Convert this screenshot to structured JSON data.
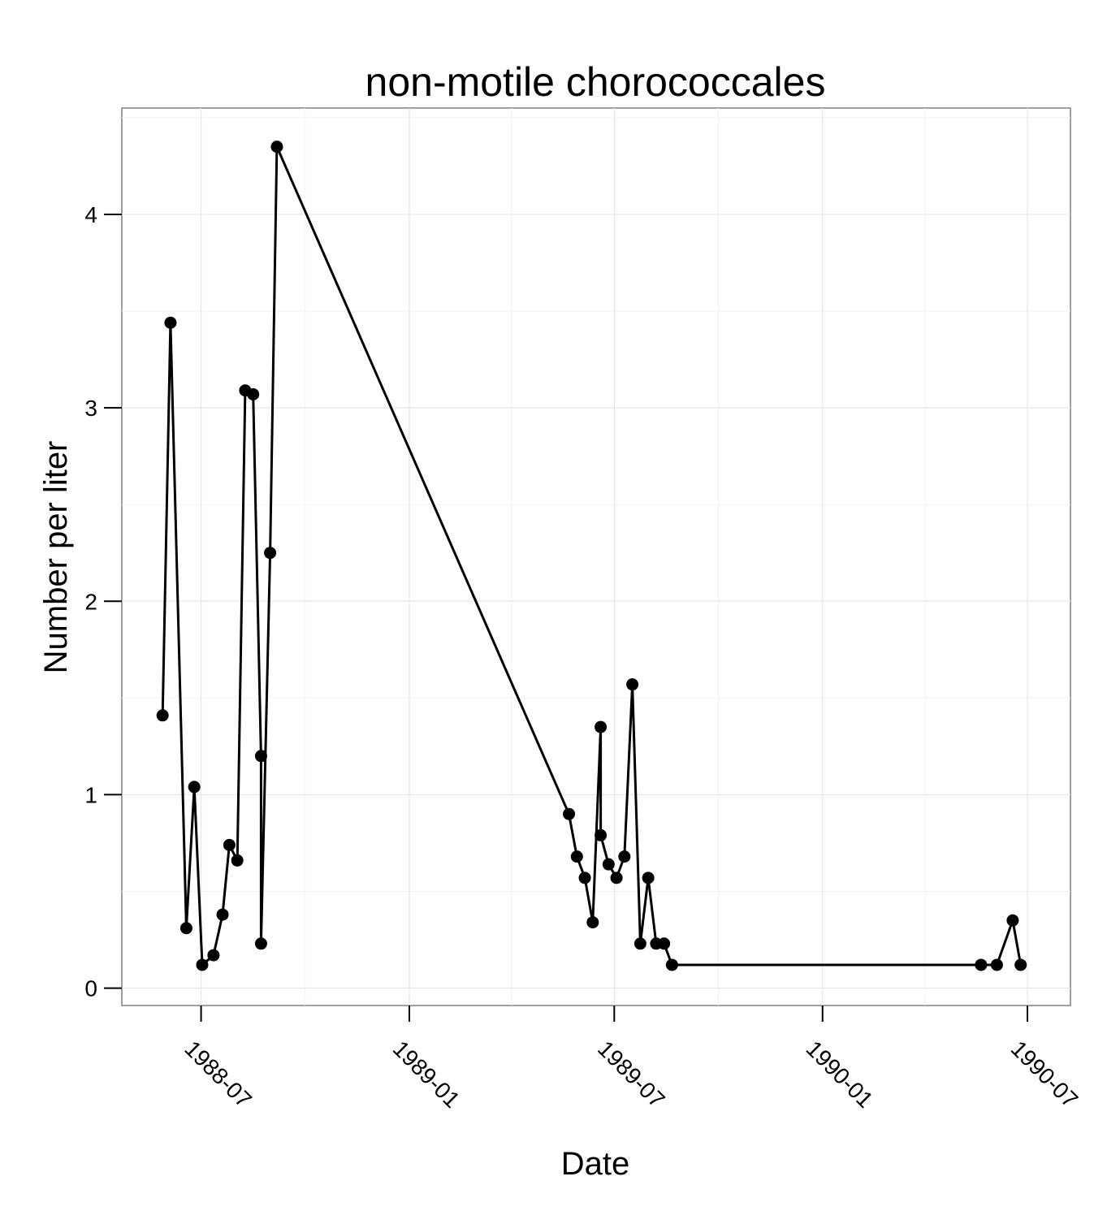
{
  "chart_data": {
    "type": "line",
    "title": "non-motile chorococcales",
    "xlabel": "Date",
    "ylabel": "Number per liter",
    "x_ticks": [
      "1988-07",
      "1989-01",
      "1989-07",
      "1990-01",
      "1990-07"
    ],
    "y_ticks": [
      0,
      1,
      2,
      3,
      4
    ],
    "xlim": [
      "1988-04-22",
      "1990-08-08"
    ],
    "ylim": [
      -0.09,
      4.55
    ],
    "grid": true,
    "markers": true,
    "series": [
      {
        "points": [
          {
            "x": "1988-05-28",
            "y": 1.41
          },
          {
            "x": "1988-06-04",
            "y": 3.44
          },
          {
            "x": "1988-06-18",
            "y": 0.31
          },
          {
            "x": "1988-06-25",
            "y": 1.04
          },
          {
            "x": "1988-07-02",
            "y": 0.12
          },
          {
            "x": "1988-07-12",
            "y": 0.17
          },
          {
            "x": "1988-07-20",
            "y": 0.38
          },
          {
            "x": "1988-07-26",
            "y": 0.74
          },
          {
            "x": "1988-08-02",
            "y": 0.66
          },
          {
            "x": "1988-08-09",
            "y": 3.09
          },
          {
            "x": "1988-08-16",
            "y": 3.07
          },
          {
            "x": "1988-08-23",
            "y": 1.2
          },
          {
            "x": "1988-08-23",
            "y": 0.23
          },
          {
            "x": "1988-08-31",
            "y": 2.25
          },
          {
            "x": "1988-09-06",
            "y": 4.35
          },
          {
            "x": "1989-05-22",
            "y": 0.9
          },
          {
            "x": "1989-05-29",
            "y": 0.68
          },
          {
            "x": "1989-06-05",
            "y": 0.57
          },
          {
            "x": "1989-06-12",
            "y": 0.34
          },
          {
            "x": "1989-06-19",
            "y": 1.35
          },
          {
            "x": "1989-06-19",
            "y": 0.79
          },
          {
            "x": "1989-06-26",
            "y": 0.64
          },
          {
            "x": "1989-07-03",
            "y": 0.57
          },
          {
            "x": "1989-07-10",
            "y": 0.68
          },
          {
            "x": "1989-07-17",
            "y": 1.57
          },
          {
            "x": "1989-07-24",
            "y": 0.23
          },
          {
            "x": "1989-07-31",
            "y": 0.57
          },
          {
            "x": "1989-08-07",
            "y": 0.23
          },
          {
            "x": "1989-08-14",
            "y": 0.23
          },
          {
            "x": "1989-08-21",
            "y": 0.12
          },
          {
            "x": "1990-05-21",
            "y": 0.12
          },
          {
            "x": "1990-06-04",
            "y": 0.12
          },
          {
            "x": "1990-06-18",
            "y": 0.35
          },
          {
            "x": "1990-06-25",
            "y": 0.12
          }
        ]
      }
    ]
  }
}
